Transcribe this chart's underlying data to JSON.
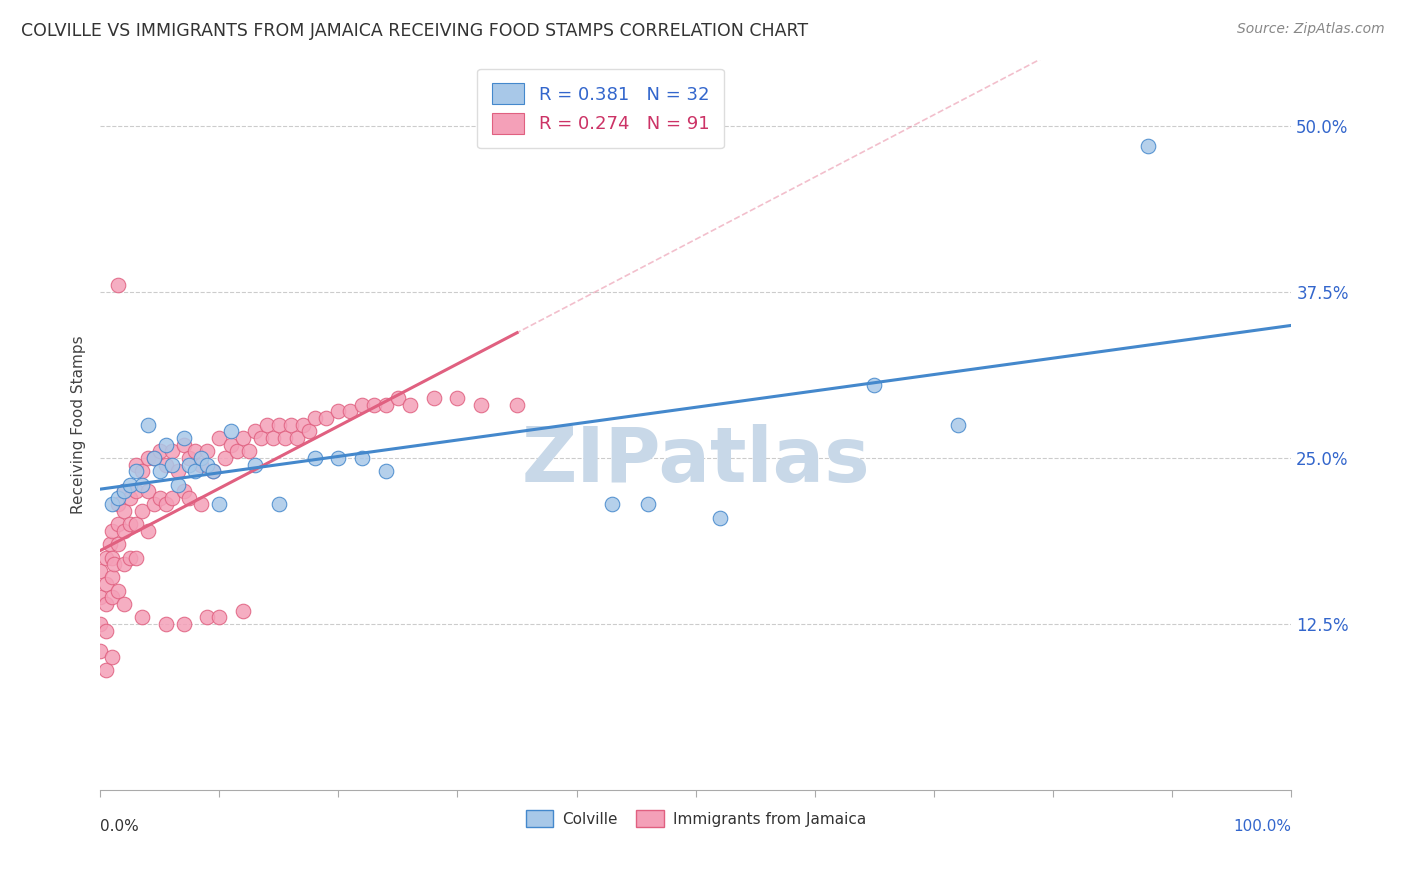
{
  "title": "COLVILLE VS IMMIGRANTS FROM JAMAICA RECEIVING FOOD STAMPS CORRELATION CHART",
  "source": "Source: ZipAtlas.com",
  "ylabel": "Receiving Food Stamps",
  "ytick_labels": [
    "12.5%",
    "25.0%",
    "37.5%",
    "50.0%"
  ],
  "ytick_values": [
    0.125,
    0.25,
    0.375,
    0.5
  ],
  "xlim": [
    0.0,
    1.0
  ],
  "ylim": [
    0.0,
    0.55
  ],
  "legend_label1": "Colville",
  "legend_label2": "Immigrants from Jamaica",
  "R1": 0.381,
  "N1": 32,
  "R2": 0.274,
  "N2": 91,
  "color_blue": "#a8c8e8",
  "color_pink": "#f4a0b8",
  "color_blue_line": "#4488cc",
  "color_pink_line": "#e06080",
  "color_blue_text": "#3366cc",
  "color_pink_text": "#cc3366",
  "watermark_color": "#c8d8e8",
  "colville_x": [
    0.01,
    0.015,
    0.02,
    0.025,
    0.03,
    0.035,
    0.04,
    0.045,
    0.05,
    0.055,
    0.06,
    0.065,
    0.07,
    0.075,
    0.08,
    0.085,
    0.09,
    0.095,
    0.1,
    0.11,
    0.13,
    0.15,
    0.18,
    0.2,
    0.22,
    0.24,
    0.43,
    0.46,
    0.52,
    0.65,
    0.72,
    0.88
  ],
  "colville_y": [
    0.215,
    0.22,
    0.225,
    0.23,
    0.24,
    0.23,
    0.275,
    0.25,
    0.24,
    0.26,
    0.245,
    0.23,
    0.265,
    0.245,
    0.24,
    0.25,
    0.245,
    0.24,
    0.215,
    0.27,
    0.245,
    0.215,
    0.25,
    0.25,
    0.25,
    0.24,
    0.215,
    0.215,
    0.205,
    0.305,
    0.275,
    0.485
  ],
  "jamaica_x": [
    0.0,
    0.0,
    0.0,
    0.0,
    0.005,
    0.005,
    0.005,
    0.005,
    0.005,
    0.008,
    0.01,
    0.01,
    0.01,
    0.01,
    0.01,
    0.012,
    0.015,
    0.015,
    0.015,
    0.015,
    0.02,
    0.02,
    0.02,
    0.02,
    0.02,
    0.025,
    0.025,
    0.025,
    0.03,
    0.03,
    0.03,
    0.03,
    0.035,
    0.035,
    0.04,
    0.04,
    0.04,
    0.045,
    0.045,
    0.05,
    0.05,
    0.055,
    0.055,
    0.06,
    0.06,
    0.065,
    0.07,
    0.07,
    0.075,
    0.075,
    0.08,
    0.085,
    0.085,
    0.09,
    0.095,
    0.1,
    0.105,
    0.11,
    0.115,
    0.12,
    0.125,
    0.13,
    0.135,
    0.14,
    0.145,
    0.15,
    0.155,
    0.16,
    0.165,
    0.17,
    0.175,
    0.18,
    0.19,
    0.2,
    0.21,
    0.22,
    0.23,
    0.24,
    0.25,
    0.26,
    0.28,
    0.3,
    0.32,
    0.35,
    0.035,
    0.055,
    0.07,
    0.09,
    0.1,
    0.12,
    0.015
  ],
  "jamaica_y": [
    0.165,
    0.145,
    0.125,
    0.105,
    0.175,
    0.155,
    0.14,
    0.12,
    0.09,
    0.185,
    0.195,
    0.175,
    0.16,
    0.145,
    0.1,
    0.17,
    0.215,
    0.2,
    0.185,
    0.15,
    0.225,
    0.21,
    0.195,
    0.17,
    0.14,
    0.22,
    0.2,
    0.175,
    0.245,
    0.225,
    0.2,
    0.175,
    0.24,
    0.21,
    0.25,
    0.225,
    0.195,
    0.25,
    0.215,
    0.255,
    0.22,
    0.245,
    0.215,
    0.255,
    0.22,
    0.24,
    0.26,
    0.225,
    0.25,
    0.22,
    0.255,
    0.245,
    0.215,
    0.255,
    0.24,
    0.265,
    0.25,
    0.26,
    0.255,
    0.265,
    0.255,
    0.27,
    0.265,
    0.275,
    0.265,
    0.275,
    0.265,
    0.275,
    0.265,
    0.275,
    0.27,
    0.28,
    0.28,
    0.285,
    0.285,
    0.29,
    0.29,
    0.29,
    0.295,
    0.29,
    0.295,
    0.295,
    0.29,
    0.29,
    0.13,
    0.125,
    0.125,
    0.13,
    0.13,
    0.135,
    0.38
  ]
}
